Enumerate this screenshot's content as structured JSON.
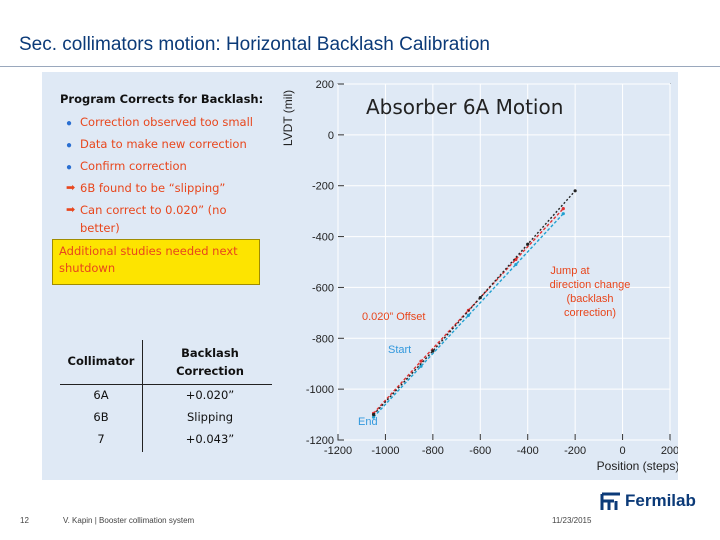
{
  "slide": {
    "title": "Sec. collimators motion: Horizontal Backlash Calibration",
    "page_number": "12",
    "footer_text": "V. Kapin | Booster collimation system",
    "date": "11/23/2015",
    "logo_text": "Fermilab"
  },
  "notes": {
    "heading": "Program Corrects for Backlash:",
    "bullets": [
      "Correction observed too small",
      "Data to make new correction",
      "Confirm correction"
    ],
    "arrows": [
      "6B found to be “slipping”",
      "Can correct to 0.020” (no",
      "better)"
    ],
    "highlight": "Additional studies needed next shutdown"
  },
  "table": {
    "headers": [
      "Collimator",
      "Backlash",
      "Correction"
    ],
    "rows": [
      {
        "collimator": "6A",
        "correction": "+0.020”"
      },
      {
        "collimator": "6B",
        "correction": "Slipping"
      },
      {
        "collimator": "7",
        "correction": "+0.043”"
      }
    ]
  },
  "chart_data": {
    "type": "line",
    "title": "Absorber 6A Motion",
    "xlabel": "Position (steps)",
    "ylabel": "LVDT (mil)",
    "xlim": [
      -1200,
      200
    ],
    "ylim": [
      -1200,
      200
    ],
    "x_ticks": [
      "-1200",
      "-1000",
      "-800",
      "-600",
      "-400",
      "-200",
      "0",
      "200"
    ],
    "y_ticks": [
      "200",
      "0",
      "-200",
      "-400",
      "-600",
      "-800",
      "-1000",
      "-1200"
    ],
    "grid": true,
    "annotations": [
      "Jump at direction change (backlash correction)",
      "0.020” Offset",
      "Start",
      "End"
    ],
    "series": [
      {
        "color": "#e03030",
        "x": [
          -1050,
          -850,
          -650,
          -450,
          -250
        ],
        "y": [
          -1095,
          -890,
          -690,
          -490,
          -290
        ]
      },
      {
        "color": "#20a0d0",
        "x": [
          -1050,
          -850,
          -650,
          -450,
          -250
        ],
        "y": [
          -1110,
          -910,
          -710,
          -510,
          -310
        ]
      },
      {
        "color": "#222222",
        "x": [
          -1050,
          -800,
          -600,
          -400,
          -200
        ],
        "y": [
          -1100,
          -850,
          -640,
          -430,
          -220
        ]
      }
    ],
    "colors": {
      "annotation": "#e8461c",
      "start_end": "#3399dd",
      "highlight": "#fde400",
      "title_color": "#0b3a78"
    }
  }
}
